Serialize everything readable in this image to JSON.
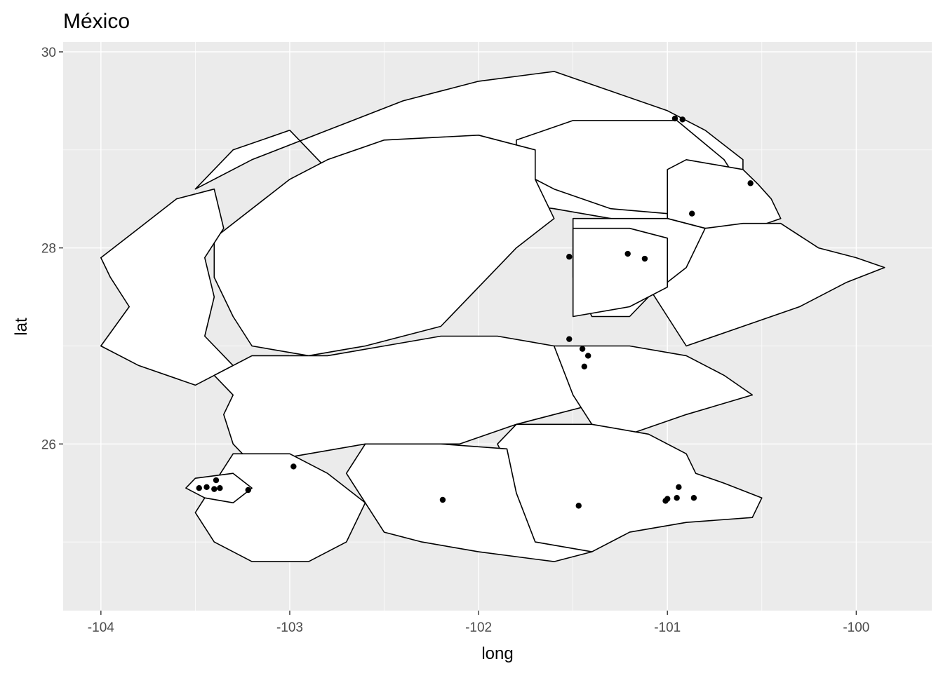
{
  "chart_data": {
    "type": "scatter",
    "title": "México",
    "xlabel": "long",
    "ylabel": "lat",
    "xlim": [
      -104.2,
      -99.6
    ],
    "ylim": [
      24.3,
      30.1
    ],
    "x_ticks": [
      -104,
      -103,
      -102,
      -101,
      -100
    ],
    "y_ticks": [
      26,
      28,
      30
    ],
    "x_tick_labels": [
      "-104",
      "-103",
      "-102",
      "-101",
      "-100"
    ],
    "y_tick_labels": [
      "26",
      "28",
      "30"
    ],
    "panel_background": "#ebebeb",
    "grid": true,
    "region_fill": "#ffffff",
    "region_stroke": "#000000",
    "point_color": "#000000",
    "regions": [
      [
        [
          -103.5,
          28.6
        ],
        [
          -103.2,
          28.9
        ],
        [
          -102.8,
          29.2
        ],
        [
          -102.4,
          29.5
        ],
        [
          -102.0,
          29.7
        ],
        [
          -101.6,
          29.8
        ],
        [
          -101.3,
          29.6
        ],
        [
          -101.0,
          29.4
        ],
        [
          -100.8,
          29.2
        ],
        [
          -100.6,
          28.9
        ],
        [
          -100.6,
          28.6
        ],
        [
          -100.6,
          28.4
        ],
        [
          -100.6,
          28.2
        ],
        [
          -101.0,
          28.2
        ],
        [
          -101.3,
          28.3
        ],
        [
          -101.6,
          28.4
        ],
        [
          -102.0,
          28.5
        ],
        [
          -102.4,
          28.6
        ],
        [
          -102.8,
          28.8
        ],
        [
          -103.0,
          29.2
        ],
        [
          -103.3,
          29.0
        ]
      ],
      [
        [
          -101.8,
          29.1
        ],
        [
          -101.5,
          29.3
        ],
        [
          -101.2,
          29.3
        ],
        [
          -100.95,
          29.3
        ],
        [
          -100.7,
          28.9
        ],
        [
          -100.6,
          28.6
        ],
        [
          -100.8,
          28.4
        ],
        [
          -101.0,
          28.35
        ],
        [
          -101.3,
          28.4
        ],
        [
          -101.6,
          28.6
        ],
        [
          -101.8,
          28.8
        ]
      ],
      [
        [
          -100.9,
          28.9
        ],
        [
          -100.6,
          28.8
        ],
        [
          -100.52,
          28.65
        ],
        [
          -100.45,
          28.5
        ],
        [
          -100.4,
          28.3
        ],
        [
          -100.55,
          28.2
        ],
        [
          -100.8,
          28.2
        ],
        [
          -101.0,
          28.3
        ],
        [
          -101.0,
          28.6
        ],
        [
          -101.0,
          28.8
        ]
      ],
      [
        [
          -100.8,
          28.2
        ],
        [
          -100.6,
          28.25
        ],
        [
          -100.4,
          28.25
        ],
        [
          -100.2,
          28.0
        ],
        [
          -100.0,
          27.9
        ],
        [
          -99.85,
          27.8
        ],
        [
          -100.05,
          27.65
        ],
        [
          -100.3,
          27.4
        ],
        [
          -100.6,
          27.2
        ],
        [
          -100.9,
          27.0
        ],
        [
          -101.0,
          27.3
        ],
        [
          -101.1,
          27.6
        ],
        [
          -101.1,
          28.0
        ],
        [
          -100.95,
          28.15
        ]
      ],
      [
        [
          -101.0,
          28.3
        ],
        [
          -100.8,
          28.2
        ],
        [
          -100.9,
          27.8
        ],
        [
          -101.1,
          27.5
        ],
        [
          -101.2,
          27.3
        ],
        [
          -101.4,
          27.3
        ],
        [
          -101.5,
          27.7
        ],
        [
          -101.5,
          28.0
        ],
        [
          -101.5,
          28.3
        ],
        [
          -101.3,
          28.3
        ]
      ],
      [
        [
          -101.5,
          28.2
        ],
        [
          -101.2,
          28.2
        ],
        [
          -101.0,
          28.1
        ],
        [
          -101.0,
          27.6
        ],
        [
          -101.2,
          27.4
        ],
        [
          -101.5,
          27.3
        ],
        [
          -101.5,
          27.7
        ]
      ],
      [
        [
          -103.4,
          28.1
        ],
        [
          -103.0,
          28.7
        ],
        [
          -102.8,
          28.9
        ],
        [
          -102.5,
          29.1
        ],
        [
          -102.0,
          29.15
        ],
        [
          -101.7,
          29.0
        ],
        [
          -101.7,
          28.7
        ],
        [
          -101.6,
          28.3
        ],
        [
          -101.8,
          28.0
        ],
        [
          -102.0,
          27.6
        ],
        [
          -102.2,
          27.2
        ],
        [
          -102.6,
          27.0
        ],
        [
          -102.9,
          26.9
        ],
        [
          -103.2,
          27.0
        ],
        [
          -103.3,
          27.3
        ],
        [
          -103.4,
          27.7
        ]
      ],
      [
        [
          -104.0,
          27.9
        ],
        [
          -103.8,
          28.2
        ],
        [
          -103.6,
          28.5
        ],
        [
          -103.4,
          28.6
        ],
        [
          -103.35,
          28.2
        ],
        [
          -103.45,
          27.9
        ],
        [
          -103.4,
          27.5
        ],
        [
          -103.45,
          27.1
        ],
        [
          -103.3,
          26.8
        ],
        [
          -103.5,
          26.6
        ],
        [
          -103.8,
          26.8
        ],
        [
          -104.0,
          27.0
        ],
        [
          -103.85,
          27.4
        ],
        [
          -103.95,
          27.7
        ]
      ],
      [
        [
          -103.4,
          26.7
        ],
        [
          -103.2,
          26.9
        ],
        [
          -102.8,
          26.9
        ],
        [
          -102.5,
          27.0
        ],
        [
          -102.2,
          27.1
        ],
        [
          -101.9,
          27.1
        ],
        [
          -101.6,
          27.0
        ],
        [
          -101.4,
          26.8
        ],
        [
          -101.4,
          26.4
        ],
        [
          -101.6,
          26.3
        ],
        [
          -101.8,
          26.2
        ],
        [
          -102.1,
          26.0
        ],
        [
          -102.4,
          26.0
        ],
        [
          -102.6,
          26.0
        ],
        [
          -102.9,
          25.9
        ],
        [
          -103.2,
          25.8
        ],
        [
          -103.3,
          26.0
        ],
        [
          -103.35,
          26.3
        ],
        [
          -103.3,
          26.5
        ]
      ],
      [
        [
          -101.6,
          27.0
        ],
        [
          -101.2,
          27.0
        ],
        [
          -100.9,
          26.9
        ],
        [
          -100.7,
          26.7
        ],
        [
          -100.55,
          26.5
        ],
        [
          -100.9,
          26.3
        ],
        [
          -101.2,
          26.1
        ],
        [
          -101.4,
          26.2
        ],
        [
          -101.5,
          26.5
        ]
      ],
      [
        [
          -101.8,
          26.2
        ],
        [
          -101.4,
          26.2
        ],
        [
          -101.1,
          26.1
        ],
        [
          -100.9,
          25.9
        ],
        [
          -100.85,
          25.7
        ],
        [
          -100.7,
          25.6
        ],
        [
          -100.5,
          25.45
        ],
        [
          -100.55,
          25.25
        ],
        [
          -100.9,
          25.2
        ],
        [
          -101.2,
          25.1
        ],
        [
          -101.4,
          24.9
        ],
        [
          -101.7,
          24.9
        ],
        [
          -101.8,
          25.2
        ],
        [
          -101.8,
          25.5
        ],
        [
          -101.85,
          25.8
        ],
        [
          -101.9,
          26.0
        ]
      ],
      [
        [
          -102.6,
          26.0
        ],
        [
          -102.2,
          26.0
        ],
        [
          -101.85,
          25.95
        ],
        [
          -101.8,
          25.5
        ],
        [
          -101.7,
          25.0
        ],
        [
          -101.4,
          24.9
        ],
        [
          -101.6,
          24.8
        ],
        [
          -102.0,
          24.9
        ],
        [
          -102.3,
          25.0
        ],
        [
          -102.5,
          25.1
        ],
        [
          -102.6,
          25.4
        ],
        [
          -102.7,
          25.7
        ]
      ],
      [
        [
          -103.3,
          25.9
        ],
        [
          -103.0,
          25.9
        ],
        [
          -102.8,
          25.7
        ],
        [
          -102.6,
          25.4
        ],
        [
          -102.7,
          25.0
        ],
        [
          -102.9,
          24.8
        ],
        [
          -103.2,
          24.8
        ],
        [
          -103.4,
          25.0
        ],
        [
          -103.5,
          25.3
        ],
        [
          -103.4,
          25.6
        ]
      ],
      [
        [
          -103.5,
          25.65
        ],
        [
          -103.3,
          25.7
        ],
        [
          -103.2,
          25.55
        ],
        [
          -103.3,
          25.4
        ],
        [
          -103.45,
          25.45
        ],
        [
          -103.55,
          25.55
        ]
      ]
    ],
    "points": [
      {
        "x": -100.96,
        "y": 29.32
      },
      {
        "x": -100.92,
        "y": 29.31
      },
      {
        "x": -100.56,
        "y": 28.66
      },
      {
        "x": -100.87,
        "y": 28.35
      },
      {
        "x": -101.21,
        "y": 27.94
      },
      {
        "x": -101.12,
        "y": 27.89
      },
      {
        "x": -101.52,
        "y": 27.91
      },
      {
        "x": -101.52,
        "y": 27.07
      },
      {
        "x": -101.45,
        "y": 26.97
      },
      {
        "x": -101.42,
        "y": 26.9
      },
      {
        "x": -101.44,
        "y": 26.79
      },
      {
        "x": -102.98,
        "y": 25.77
      },
      {
        "x": -103.39,
        "y": 25.63
      },
      {
        "x": -103.48,
        "y": 25.55
      },
      {
        "x": -103.44,
        "y": 25.56
      },
      {
        "x": -103.4,
        "y": 25.54
      },
      {
        "x": -103.37,
        "y": 25.55
      },
      {
        "x": -103.22,
        "y": 25.53
      },
      {
        "x": -102.19,
        "y": 25.43
      },
      {
        "x": -101.47,
        "y": 25.37
      },
      {
        "x": -101.01,
        "y": 25.42
      },
      {
        "x": -101.0,
        "y": 25.44
      },
      {
        "x": -100.95,
        "y": 25.45
      },
      {
        "x": -100.94,
        "y": 25.56
      },
      {
        "x": -100.86,
        "y": 25.45
      }
    ]
  }
}
